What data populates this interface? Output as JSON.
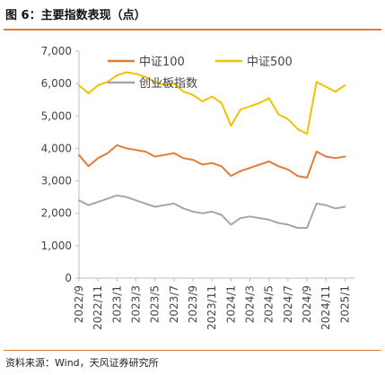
{
  "header": {
    "title": "图 6：主要指数表现（点）"
  },
  "footer": {
    "source": "资料来源：Wind，天风证券研究所"
  },
  "colors": {
    "accent": "#E07B39",
    "axis": "#BFBFBF"
  },
  "chart_data": {
    "type": "line",
    "title": "图 6：主要指数表现（点）",
    "xlabel": "",
    "ylabel": "",
    "ylim": [
      0,
      7000
    ],
    "yticks": [
      0,
      1000,
      2000,
      3000,
      4000,
      5000,
      6000,
      7000
    ],
    "ytick_labels": [
      "0",
      "1,000",
      "2,000",
      "3,000",
      "4,000",
      "5,000",
      "6,000",
      "7,000"
    ],
    "xlim": [
      "2022-09",
      "2025-02"
    ],
    "x_tick_labels": [
      "2022/9",
      "2022/11",
      "2023/1",
      "2023/3",
      "2023/5",
      "2023/7",
      "2023/9",
      "2023/11",
      "2024/1",
      "2024/3",
      "2024/5",
      "2024/7",
      "2024/9",
      "2024/11",
      "2025/1"
    ],
    "grid": false,
    "legend_position": "top",
    "series": [
      {
        "name": "中证100",
        "color": "#E07B39",
        "x": [
          "2022-09",
          "2022-10",
          "2022-11",
          "2022-12",
          "2023-01",
          "2023-02",
          "2023-03",
          "2023-04",
          "2023-05",
          "2023-06",
          "2023-07",
          "2023-08",
          "2023-09",
          "2023-10",
          "2023-11",
          "2023-12",
          "2024-01",
          "2024-02",
          "2024-03",
          "2024-04",
          "2024-05",
          "2024-06",
          "2024-07",
          "2024-08",
          "2024-09",
          "2024-10",
          "2024-11",
          "2024-12",
          "2025-01"
        ],
        "values": [
          3800,
          3450,
          3700,
          3850,
          4100,
          4000,
          3950,
          3900,
          3750,
          3800,
          3850,
          3700,
          3650,
          3500,
          3550,
          3450,
          3150,
          3300,
          3400,
          3500,
          3600,
          3450,
          3350,
          3150,
          3100,
          3900,
          3750,
          3700,
          3750
        ]
      },
      {
        "name": "中证500",
        "color": "#F2C100",
        "x": [
          "2022-09",
          "2022-10",
          "2022-11",
          "2022-12",
          "2023-01",
          "2023-02",
          "2023-03",
          "2023-04",
          "2023-05",
          "2023-06",
          "2023-07",
          "2023-08",
          "2023-09",
          "2023-10",
          "2023-11",
          "2023-12",
          "2024-01",
          "2024-02",
          "2024-03",
          "2024-04",
          "2024-05",
          "2024-06",
          "2024-07",
          "2024-08",
          "2024-09",
          "2024-10",
          "2024-11",
          "2024-12",
          "2025-01"
        ],
        "values": [
          5950,
          5700,
          5950,
          6050,
          6250,
          6350,
          6300,
          6200,
          6050,
          5950,
          6000,
          5750,
          5650,
          5450,
          5600,
          5400,
          4700,
          5200,
          5300,
          5400,
          5550,
          5050,
          4900,
          4600,
          4450,
          6050,
          5900,
          5750,
          5950
        ]
      },
      {
        "name": "创业板指数",
        "color": "#A6A6A6",
        "x": [
          "2022-09",
          "2022-10",
          "2022-11",
          "2022-12",
          "2023-01",
          "2023-02",
          "2023-03",
          "2023-04",
          "2023-05",
          "2023-06",
          "2023-07",
          "2023-08",
          "2023-09",
          "2023-10",
          "2023-11",
          "2023-12",
          "2024-01",
          "2024-02",
          "2024-03",
          "2024-04",
          "2024-05",
          "2024-06",
          "2024-07",
          "2024-08",
          "2024-09",
          "2024-10",
          "2024-11",
          "2024-12",
          "2025-01"
        ],
        "values": [
          2400,
          2250,
          2350,
          2450,
          2550,
          2500,
          2400,
          2300,
          2200,
          2250,
          2300,
          2150,
          2050,
          2000,
          2050,
          1950,
          1650,
          1850,
          1900,
          1850,
          1800,
          1700,
          1650,
          1550,
          1550,
          2300,
          2250,
          2150,
          2200
        ]
      }
    ]
  }
}
